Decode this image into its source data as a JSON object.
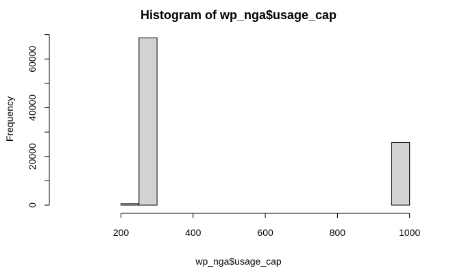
{
  "chart_data": {
    "type": "bar",
    "title": "Histogram of wp_nga$usage_cap",
    "xlabel": "wp_nga$usage_cap",
    "ylabel": "Frequency",
    "xlim": [
      50,
      1000
    ],
    "ylim": [
      0,
      70000
    ],
    "bin_width": 50,
    "bins": [
      {
        "start": 50,
        "end": 100,
        "value": 0
      },
      {
        "start": 100,
        "end": 150,
        "value": 0
      },
      {
        "start": 150,
        "end": 200,
        "value": 0
      },
      {
        "start": 200,
        "end": 250,
        "value": 600
      },
      {
        "start": 250,
        "end": 300,
        "value": 68700
      },
      {
        "start": 300,
        "end": 350,
        "value": 0
      },
      {
        "start": 350,
        "end": 400,
        "value": 0
      },
      {
        "start": 400,
        "end": 450,
        "value": 0
      },
      {
        "start": 450,
        "end": 500,
        "value": 0
      },
      {
        "start": 500,
        "end": 550,
        "value": 0
      },
      {
        "start": 550,
        "end": 600,
        "value": 0
      },
      {
        "start": 600,
        "end": 650,
        "value": 0
      },
      {
        "start": 650,
        "end": 700,
        "value": 0
      },
      {
        "start": 700,
        "end": 750,
        "value": 0
      },
      {
        "start": 750,
        "end": 800,
        "value": 0
      },
      {
        "start": 800,
        "end": 850,
        "value": 0
      },
      {
        "start": 850,
        "end": 900,
        "value": 0
      },
      {
        "start": 900,
        "end": 950,
        "value": 0
      },
      {
        "start": 950,
        "end": 1000,
        "value": 25700
      }
    ],
    "x_ticks": [
      200,
      400,
      600,
      800,
      1000
    ],
    "y_ticks": [
      0,
      20000,
      40000,
      60000
    ],
    "y_minor_ticks": [
      10000,
      30000,
      50000,
      70000
    ],
    "bar_color": "#d3d3d3",
    "grid": false
  }
}
